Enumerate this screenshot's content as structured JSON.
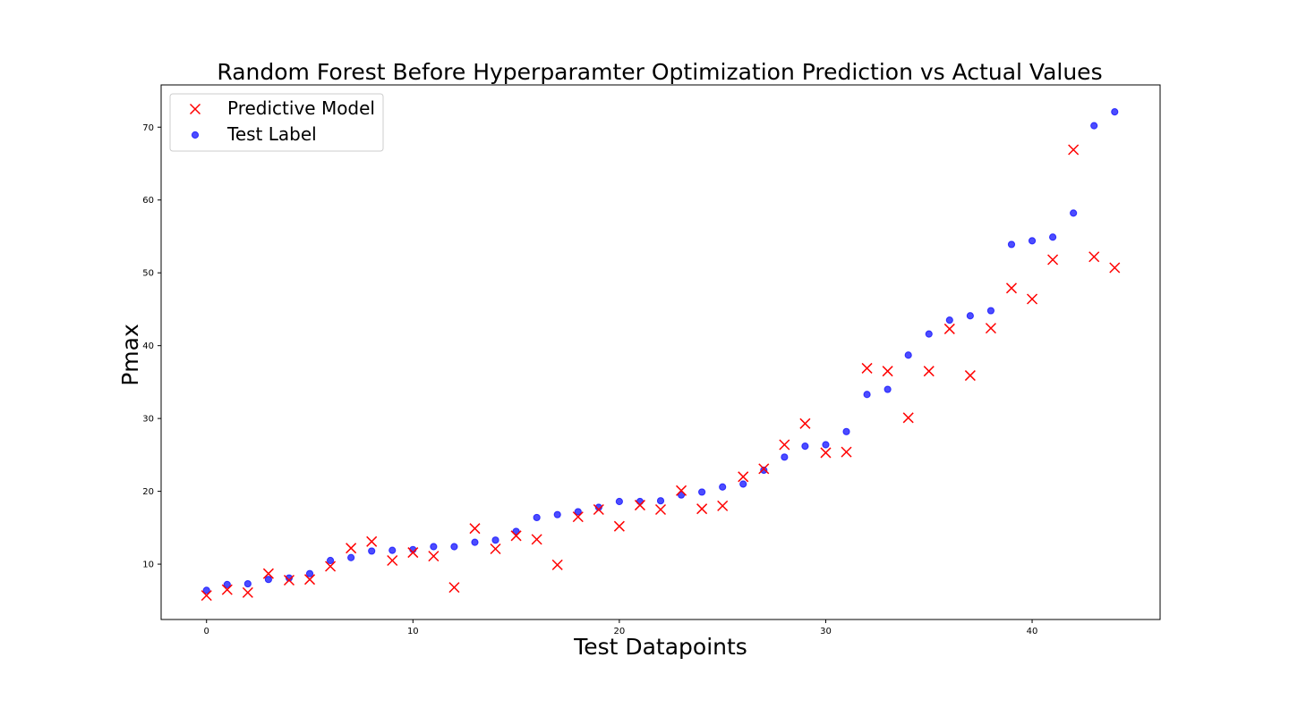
{
  "chart_data": {
    "type": "scatter",
    "title": "Random Forest Before Hyperparamter Optimization Prediction vs Actual Values",
    "xlabel": "Test Datapoints",
    "ylabel": "Pmax",
    "xlim": [
      -2.2,
      46.2
    ],
    "ylim": [
      2.4,
      75.8
    ],
    "xticks": [
      0,
      10,
      20,
      30,
      40
    ],
    "yticks": [
      10,
      20,
      30,
      40,
      50,
      60,
      70
    ],
    "grid": false,
    "legend_position": "top-left",
    "x": [
      0,
      1,
      2,
      3,
      4,
      5,
      6,
      7,
      8,
      9,
      10,
      11,
      12,
      13,
      14,
      15,
      16,
      17,
      18,
      19,
      20,
      21,
      22,
      23,
      24,
      25,
      26,
      27,
      28,
      29,
      30,
      31,
      32,
      33,
      34,
      35,
      36,
      37,
      38,
      39,
      40,
      41,
      42,
      43,
      44
    ],
    "series": [
      {
        "name": "Predictive Model",
        "marker": "x",
        "color": "#ff0000",
        "values": [
          5.7,
          6.5,
          6.1,
          8.7,
          7.8,
          7.9,
          9.7,
          12.2,
          13.1,
          10.5,
          11.6,
          11.1,
          6.8,
          14.9,
          12.1,
          13.9,
          13.4,
          9.9,
          16.5,
          17.5,
          15.2,
          18.1,
          17.5,
          20.1,
          17.6,
          18.0,
          22.0,
          23.1,
          26.4,
          29.3,
          25.3,
          25.4,
          36.9,
          36.5,
          30.1,
          36.5,
          42.3,
          35.9,
          42.4,
          47.9,
          46.4,
          51.8,
          66.9,
          52.2,
          50.7
        ]
      },
      {
        "name": "Test Label",
        "marker": "o",
        "color": "#0000ff",
        "values": [
          6.4,
          7.2,
          7.3,
          7.9,
          8.1,
          8.7,
          10.5,
          10.9,
          11.8,
          11.9,
          12.0,
          12.4,
          12.4,
          13.0,
          13.3,
          14.5,
          16.4,
          16.8,
          17.2,
          17.8,
          18.6,
          18.6,
          18.7,
          19.5,
          19.9,
          20.6,
          21.0,
          22.9,
          24.7,
          26.2,
          26.4,
          28.2,
          33.3,
          34.0,
          38.7,
          41.6,
          43.5,
          44.1,
          44.8,
          53.9,
          54.4,
          54.9,
          58.2,
          70.2,
          72.1
        ]
      }
    ]
  }
}
